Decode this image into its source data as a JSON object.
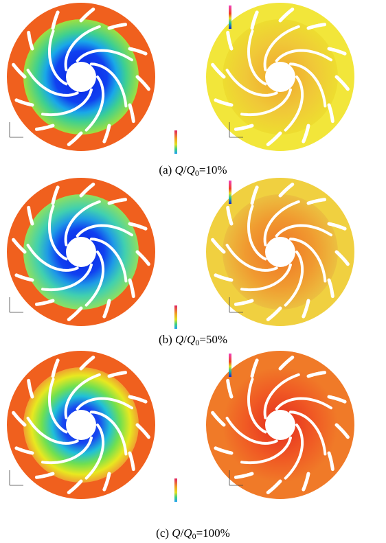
{
  "panels": [
    {
      "label": "(a)",
      "q1": "Q",
      "q2": "Q",
      "sub": "0",
      "rest": "=10%"
    },
    {
      "label": "(b)",
      "q1": "Q",
      "q2": "Q",
      "sub": "0",
      "rest": "=50%"
    },
    {
      "label": "(c)",
      "q1": "Q",
      "q2": "Q",
      "sub": "0",
      "rest": "=100%"
    }
  ]
}
